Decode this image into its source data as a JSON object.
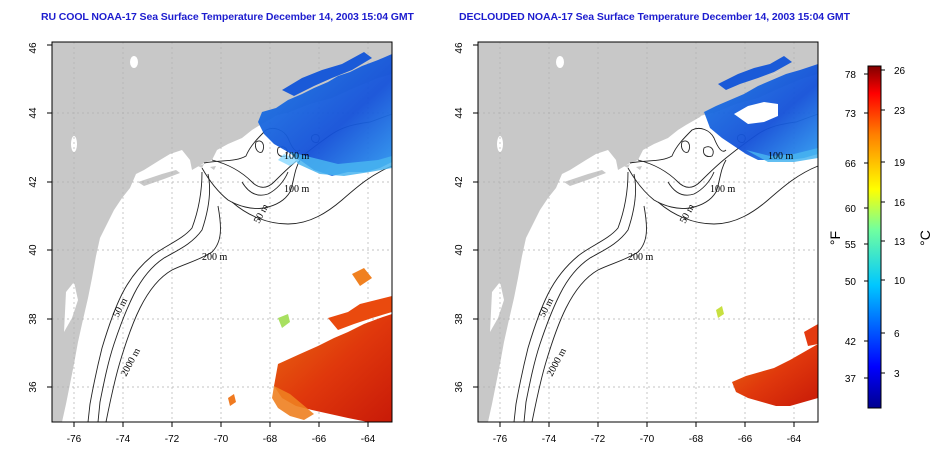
{
  "titles": {
    "left": "RU COOL NOAA-17 Sea Surface Temperature December 14, 2003 15:04 GMT",
    "right": "DECLOUDED NOAA-17 Sea Surface Temperature December 14, 2003 15:04 GMT"
  },
  "map": {
    "lon_ticks": [
      "-76",
      "-74",
      "-72",
      "-70",
      "-68",
      "-66",
      "-64"
    ],
    "lat_ticks": [
      "36",
      "38",
      "40",
      "42",
      "44",
      "46"
    ],
    "contour_labels": [
      "100 m",
      "100 m",
      "50 m",
      "200 m",
      "50 m",
      "2000 m"
    ],
    "colors": {
      "land": "#c8c8c8",
      "water_bg": "#ffffff",
      "cold": "#1e5de0",
      "warm": "#e03a10",
      "grid": "#b0b0b0"
    }
  },
  "colorbar": {
    "fahrenheit_ticks": [
      "78",
      "73",
      "66",
      "60",
      "55",
      "50",
      "42",
      "37"
    ],
    "celsius_ticks": [
      "26",
      "23",
      "19",
      "16",
      "13",
      "10",
      "6",
      "3"
    ],
    "fahrenheit_unit": "°F",
    "celsius_unit": "°C",
    "range_c": [
      0,
      26
    ]
  }
}
